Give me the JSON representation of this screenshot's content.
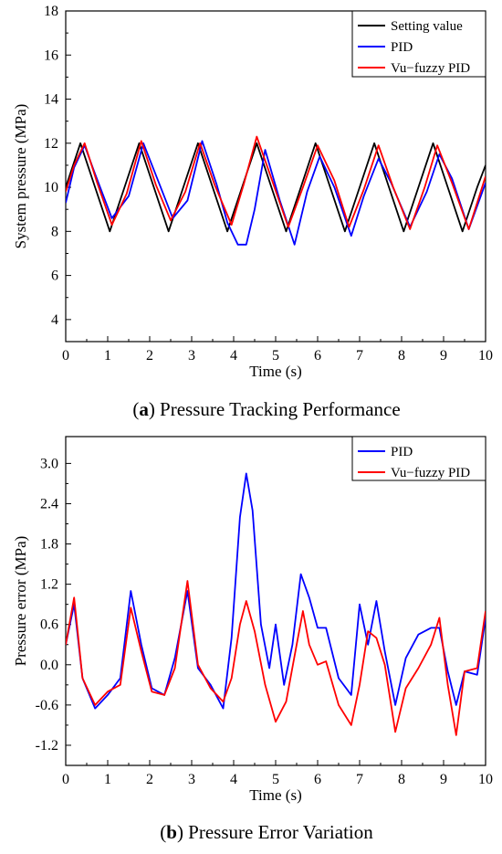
{
  "chart_data": [
    {
      "type": "line",
      "id": "a",
      "caption": {
        "letter": "a",
        "text": " Pressure Tracking Performance"
      },
      "xlabel": "Time (s)",
      "ylabel": "System pressure (MPa)",
      "xlim": [
        0,
        10
      ],
      "ylim": [
        3,
        18
      ],
      "xticks": [
        0,
        1,
        2,
        3,
        4,
        5,
        6,
        7,
        8,
        9,
        10
      ],
      "yticks": [
        4,
        6,
        8,
        10,
        12,
        14,
        16,
        18
      ],
      "legend_position": "top-right",
      "grid": false,
      "series": [
        {
          "name": "Setting value",
          "color": "#000000",
          "x": [
            0.0,
            0.35,
            0.7,
            1.05,
            1.4,
            1.75,
            2.1,
            2.45,
            2.8,
            3.15,
            3.5,
            3.85,
            4.2,
            4.55,
            4.9,
            5.25,
            5.6,
            5.95,
            6.3,
            6.65,
            7.0,
            7.35,
            7.7,
            8.05,
            8.4,
            8.75,
            9.1,
            9.45,
            9.8,
            10.0
          ],
          "y": [
            10.0,
            12.0,
            10.0,
            8.0,
            10.0,
            12.0,
            10.0,
            8.0,
            10.0,
            12.0,
            10.0,
            8.0,
            10.0,
            12.0,
            10.0,
            8.0,
            10.0,
            12.0,
            10.0,
            8.0,
            10.0,
            12.0,
            10.0,
            8.0,
            10.0,
            12.0,
            10.0,
            8.0,
            10.0,
            11.0
          ]
        },
        {
          "name": "PID",
          "color": "#0000ff",
          "x": [
            0.0,
            0.2,
            0.45,
            0.7,
            1.1,
            1.5,
            1.85,
            2.2,
            2.55,
            2.9,
            3.25,
            3.6,
            3.85,
            4.1,
            4.3,
            4.5,
            4.75,
            5.1,
            5.45,
            5.75,
            6.05,
            6.4,
            6.8,
            7.1,
            7.45,
            7.75,
            8.2,
            8.6,
            8.9,
            9.2,
            9.6,
            10.0
          ],
          "y": [
            9.3,
            10.9,
            11.9,
            10.6,
            8.6,
            9.6,
            12.0,
            10.3,
            8.6,
            9.4,
            12.1,
            10.1,
            8.4,
            7.4,
            7.4,
            9.0,
            11.7,
            9.4,
            7.4,
            9.8,
            11.4,
            10.0,
            7.8,
            9.6,
            11.3,
            10.2,
            8.2,
            9.8,
            11.5,
            10.4,
            8.1,
            10.2
          ]
        },
        {
          "name": "Vu−fuzzy PID",
          "color": "#ff0000",
          "x": [
            0.0,
            0.2,
            0.45,
            0.75,
            1.1,
            1.45,
            1.8,
            2.15,
            2.5,
            2.85,
            3.2,
            3.55,
            3.95,
            4.25,
            4.55,
            4.9,
            5.3,
            5.65,
            6.0,
            6.4,
            6.75,
            7.1,
            7.45,
            7.8,
            8.2,
            8.55,
            8.85,
            9.2,
            9.6,
            10.0
          ],
          "y": [
            9.8,
            11.0,
            12.0,
            10.2,
            8.3,
            9.7,
            12.1,
            10.1,
            8.5,
            9.8,
            12.0,
            10.1,
            8.3,
            10.2,
            12.3,
            10.4,
            8.2,
            10.0,
            11.9,
            10.3,
            8.2,
            9.9,
            11.9,
            10.0,
            8.1,
            10.0,
            11.9,
            10.2,
            8.1,
            10.5
          ]
        }
      ]
    },
    {
      "type": "line",
      "id": "b",
      "caption": {
        "letter": "b",
        "text": " Pressure Error Variation"
      },
      "xlabel": "Time (s)",
      "ylabel": "Pressure error (MPa)",
      "xlim": [
        0,
        10
      ],
      "ylim": [
        -1.5,
        3.4
      ],
      "xticks": [
        0,
        1,
        2,
        3,
        4,
        5,
        6,
        7,
        8,
        9,
        10
      ],
      "yticks": [
        -1.2,
        -0.6,
        0.0,
        0.6,
        1.2,
        1.8,
        2.4,
        3.0
      ],
      "ytick_labels": [
        "-1.2",
        "-0.6",
        "0.0",
        "0.6",
        "1.2",
        "1.8",
        "2.4",
        "3.0"
      ],
      "legend_position": "top-right",
      "grid": false,
      "series": [
        {
          "name": "PID",
          "color": "#0000ff",
          "x": [
            0.0,
            0.2,
            0.4,
            0.7,
            1.0,
            1.3,
            1.55,
            1.8,
            2.05,
            2.35,
            2.6,
            2.9,
            3.15,
            3.45,
            3.75,
            3.95,
            4.15,
            4.3,
            4.45,
            4.65,
            4.85,
            5.0,
            5.2,
            5.4,
            5.6,
            5.8,
            6.0,
            6.2,
            6.5,
            6.8,
            7.0,
            7.2,
            7.4,
            7.6,
            7.85,
            8.1,
            8.4,
            8.7,
            8.9,
            9.1,
            9.3,
            9.5,
            9.8,
            10.0
          ],
          "y": [
            0.3,
            0.9,
            -0.2,
            -0.65,
            -0.45,
            -0.2,
            1.1,
            0.3,
            -0.35,
            -0.45,
            0.1,
            1.1,
            -0.05,
            -0.3,
            -0.65,
            0.4,
            2.2,
            2.85,
            2.3,
            0.6,
            -0.05,
            0.6,
            -0.3,
            0.3,
            1.35,
            1.0,
            0.55,
            0.55,
            -0.2,
            -0.45,
            0.9,
            0.3,
            0.95,
            0.2,
            -0.6,
            0.1,
            0.45,
            0.55,
            0.55,
            -0.1,
            -0.6,
            -0.1,
            -0.15,
            0.7
          ]
        },
        {
          "name": "Vu−fuzzy PID",
          "color": "#ff0000",
          "x": [
            0.0,
            0.2,
            0.4,
            0.7,
            1.0,
            1.3,
            1.55,
            1.8,
            2.05,
            2.35,
            2.6,
            2.9,
            3.15,
            3.45,
            3.75,
            3.95,
            4.15,
            4.3,
            4.5,
            4.75,
            5.0,
            5.25,
            5.5,
            5.65,
            5.8,
            6.0,
            6.2,
            6.5,
            6.8,
            7.0,
            7.2,
            7.4,
            7.6,
            7.85,
            8.1,
            8.4,
            8.7,
            8.9,
            9.1,
            9.3,
            9.5,
            9.8,
            10.0
          ],
          "y": [
            0.3,
            1.0,
            -0.2,
            -0.6,
            -0.4,
            -0.3,
            0.85,
            0.2,
            -0.4,
            -0.45,
            -0.05,
            1.25,
            0.0,
            -0.35,
            -0.55,
            -0.2,
            0.6,
            0.95,
            0.5,
            -0.3,
            -0.85,
            -0.55,
            0.3,
            0.8,
            0.3,
            0.0,
            0.05,
            -0.6,
            -0.9,
            -0.3,
            0.5,
            0.4,
            0.0,
            -1.0,
            -0.35,
            -0.05,
            0.3,
            0.7,
            -0.3,
            -1.05,
            -0.1,
            -0.05,
            0.8
          ]
        }
      ]
    }
  ]
}
